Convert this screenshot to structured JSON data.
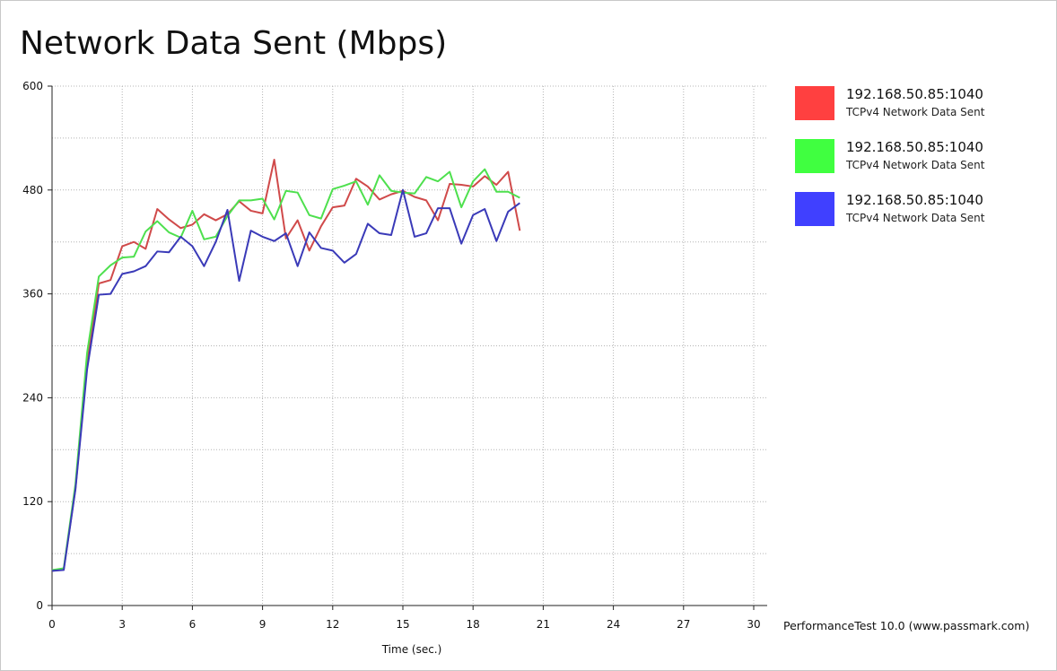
{
  "title": "Network Data Sent (Mbps)",
  "footer": "PerformanceTest 10.0 (www.passmark.com)",
  "legend": [
    {
      "name": "192.168.50.85:1040",
      "sub": "TCPv4 Network Data Sent",
      "color": "#ff4040"
    },
    {
      "name": "192.168.50.85:1040",
      "sub": "TCPv4 Network Data Sent",
      "color": "#40ff40"
    },
    {
      "name": "192.168.50.85:1040",
      "sub": "TCPv4 Network Data Sent",
      "color": "#4040ff"
    }
  ],
  "chart_data": {
    "type": "line",
    "title": "Network Data Sent (Mbps)",
    "xlabel": "Time (sec.)",
    "ylabel": "",
    "xlim": [
      0,
      30
    ],
    "ylim": [
      0,
      600
    ],
    "xticks": [
      0,
      3,
      6,
      9,
      12,
      15,
      18,
      21,
      24,
      27,
      30
    ],
    "yticks": [
      0,
      120,
      240,
      360,
      480,
      600
    ],
    "grid": true,
    "legend_position": "right",
    "x": [
      0,
      0.5,
      1,
      1.5,
      2,
      2.5,
      3,
      3.5,
      4,
      4.5,
      5,
      5.5,
      6,
      6.5,
      7,
      7.5,
      8,
      8.5,
      9,
      9.5,
      10,
      10.5,
      11,
      11.5,
      12,
      12.5,
      13,
      13.5,
      14,
      14.5,
      15,
      15.5,
      16,
      16.5,
      17,
      17.5,
      18,
      18.5,
      19,
      19.5,
      20
    ],
    "series": [
      {
        "name": "192.168.50.85:1040",
        "color": "#d04a4a",
        "values": [
          40,
          42,
          135,
          280,
          372,
          376,
          415,
          420,
          412,
          458,
          446,
          436,
          440,
          452,
          445,
          452,
          467,
          456,
          453,
          515,
          424,
          445,
          410,
          438,
          460,
          462,
          493,
          484,
          469,
          475,
          479,
          472,
          468,
          445,
          487,
          486,
          484,
          496,
          486,
          501,
          433
        ]
      },
      {
        "name": "192.168.50.85:1040",
        "color": "#4ee04e",
        "values": [
          41,
          43,
          140,
          292,
          380,
          393,
          402,
          403,
          432,
          444,
          431,
          425,
          456,
          423,
          426,
          450,
          468,
          468,
          470,
          446,
          479,
          477,
          451,
          447,
          481,
          485,
          490,
          463,
          497,
          479,
          477,
          476,
          495,
          490,
          501,
          460,
          490,
          504,
          478,
          478,
          471
        ]
      },
      {
        "name": "192.168.50.85:1040",
        "color": "#3a3ab8",
        "values": [
          40,
          41,
          134,
          273,
          359,
          360,
          383,
          386,
          392,
          409,
          408,
          426,
          415,
          392,
          420,
          457,
          375,
          433,
          426,
          421,
          430,
          392,
          431,
          413,
          410,
          396,
          406,
          441,
          430,
          428,
          480,
          426,
          430,
          459,
          459,
          418,
          451,
          458,
          421,
          455,
          465
        ]
      }
    ]
  }
}
